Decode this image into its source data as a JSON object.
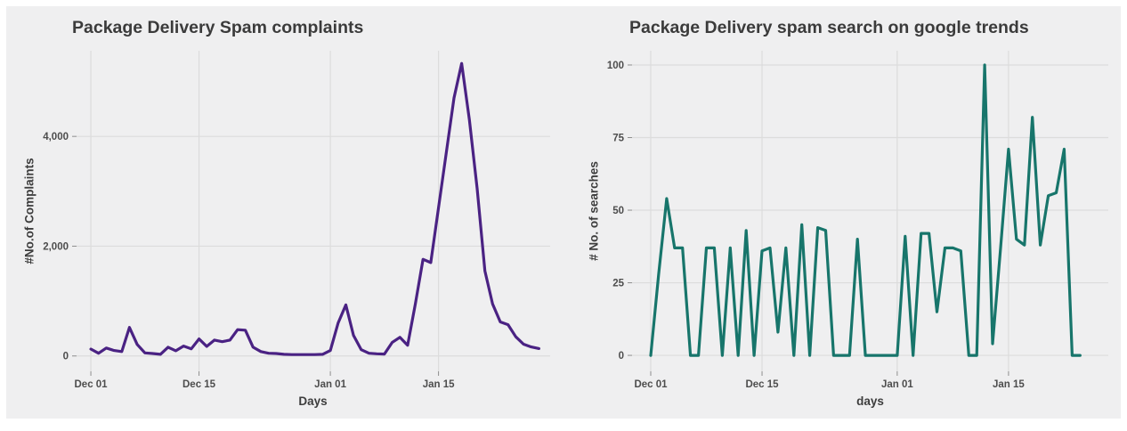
{
  "figure": {
    "page_background": "#ffffff",
    "background": "#efeff0",
    "gridline_color": "#dcdcdc",
    "tick_mark_color": "#8e8e8e",
    "title_color": "#3b3b3b",
    "axis_label_color": "#3d3d3d",
    "tick_label_color": "#4d4d4d"
  },
  "chart_data": [
    {
      "type": "line",
      "title": "Package Delivery Spam complaints",
      "xlabel": "Days",
      "ylabel": "#No.of Complaints",
      "line_color": "#4a2283",
      "grid": true,
      "legend": "none",
      "x_ticks": [
        {
          "label": "Dec 01",
          "day": 0
        },
        {
          "label": "Dec 15",
          "day": 14
        },
        {
          "label": "Jan 01",
          "day": 31
        },
        {
          "label": "Jan 15",
          "day": 45
        }
      ],
      "y_ticks": [
        {
          "label": "0",
          "value": 0
        },
        {
          "label": "2,000",
          "value": 2000
        },
        {
          "label": "4,000",
          "value": 4000
        }
      ],
      "xlim": [
        -1.85,
        59.45
      ],
      "ylim": [
        -280,
        5560
      ],
      "x_unit": "days since Dec 01",
      "values": [
        125,
        50,
        145,
        100,
        80,
        520,
        210,
        55,
        45,
        30,
        160,
        95,
        180,
        130,
        310,
        175,
        290,
        260,
        290,
        480,
        470,
        160,
        80,
        50,
        45,
        30,
        25,
        25,
        25,
        25,
        30,
        100,
        600,
        930,
        375,
        115,
        50,
        40,
        35,
        245,
        340,
        195,
        950,
        1760,
        1700,
        2700,
        3700,
        4700,
        5330,
        4300,
        3050,
        1550,
        950,
        620,
        570,
        350,
        215,
        165,
        135
      ]
    },
    {
      "type": "line",
      "title": "Package Delivery spam search on google trends",
      "xlabel": "days",
      "ylabel": "# No. of searches",
      "line_color": "#17756b",
      "grid": true,
      "legend": "none",
      "x_ticks": [
        {
          "label": "Dec 01",
          "day": 0
        },
        {
          "label": "Dec 15",
          "day": 14
        },
        {
          "label": "Jan 01",
          "day": 31
        },
        {
          "label": "Jan 15",
          "day": 45
        }
      ],
      "y_ticks": [
        {
          "label": "0",
          "value": 0
        },
        {
          "label": "25",
          "value": 25
        },
        {
          "label": "50",
          "value": 50
        },
        {
          "label": "75",
          "value": 75
        },
        {
          "label": "100",
          "value": 100
        }
      ],
      "xlim": [
        -2.35,
        57.55
      ],
      "ylim": [
        -5.5,
        104.9
      ],
      "x_unit": "days since Dec 01",
      "values": [
        0,
        28,
        54,
        37,
        37,
        0,
        0,
        37,
        37,
        0,
        37,
        0,
        43,
        0,
        36,
        37,
        8,
        37,
        0,
        45,
        0,
        44,
        43,
        0,
        0,
        0,
        40,
        0,
        0,
        0,
        0,
        0,
        41,
        0,
        42,
        42,
        15,
        37,
        37,
        36,
        0,
        0,
        100,
        4,
        37,
        71,
        40,
        38,
        82,
        38,
        55,
        56,
        71,
        0,
        0
      ]
    }
  ]
}
